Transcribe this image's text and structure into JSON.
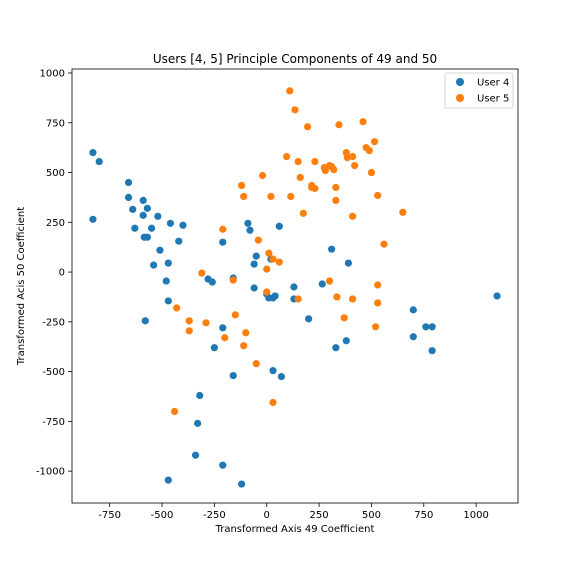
{
  "chart_data": {
    "type": "scatter",
    "title": "Users [4, 5] Principle Components of 49 and 50",
    "xlabel": "Transformed Axis 49 Coefficient",
    "ylabel": "Transformed Acis 50 Coefficient",
    "xlim": [
      -930,
      1200
    ],
    "ylim": [
      -1160,
      1020
    ],
    "xticks": [
      -750,
      -500,
      -250,
      0,
      250,
      500,
      750,
      1000
    ],
    "yticks": [
      -1000,
      -750,
      -500,
      -250,
      0,
      250,
      500,
      750,
      1000
    ],
    "grid": false,
    "legend_position": "top-right",
    "series": [
      {
        "name": "User 4",
        "color": "#1f77b4",
        "points": [
          [
            -830,
            600
          ],
          [
            -800,
            555
          ],
          [
            -830,
            265
          ],
          [
            -660,
            450
          ],
          [
            -660,
            375
          ],
          [
            -640,
            315
          ],
          [
            -630,
            220
          ],
          [
            -590,
            360
          ],
          [
            -570,
            320
          ],
          [
            -590,
            285
          ],
          [
            -585,
            175
          ],
          [
            -570,
            175
          ],
          [
            -550,
            220
          ],
          [
            -520,
            280
          ],
          [
            -460,
            245
          ],
          [
            -400,
            235
          ],
          [
            -420,
            155
          ],
          [
            -510,
            110
          ],
          [
            -540,
            35
          ],
          [
            -470,
            45
          ],
          [
            -480,
            -45
          ],
          [
            -470,
            -145
          ],
          [
            -580,
            -245
          ],
          [
            -280,
            -35
          ],
          [
            -260,
            -50
          ],
          [
            -210,
            150
          ],
          [
            -210,
            -280
          ],
          [
            -250,
            -380
          ],
          [
            -160,
            -30
          ],
          [
            -160,
            -520
          ],
          [
            -320,
            -620
          ],
          [
            -330,
            -760
          ],
          [
            -340,
            -920
          ],
          [
            -470,
            -1045
          ],
          [
            -210,
            -970
          ],
          [
            -120,
            -1065
          ],
          [
            -90,
            245
          ],
          [
            -80,
            210
          ],
          [
            -50,
            80
          ],
          [
            -60,
            40
          ],
          [
            -60,
            -80
          ],
          [
            0,
            -110
          ],
          [
            10,
            -130
          ],
          [
            30,
            -130
          ],
          [
            40,
            -120
          ],
          [
            20,
            65
          ],
          [
            60,
            230
          ],
          [
            130,
            -75
          ],
          [
            130,
            -135
          ],
          [
            30,
            -495
          ],
          [
            70,
            -525
          ],
          [
            200,
            -235
          ],
          [
            265,
            -60
          ],
          [
            310,
            115
          ],
          [
            390,
            45
          ],
          [
            330,
            -380
          ],
          [
            380,
            -345
          ],
          [
            700,
            -190
          ],
          [
            700,
            -325
          ],
          [
            760,
            -275
          ],
          [
            790,
            -275
          ],
          [
            790,
            -395
          ],
          [
            1100,
            -120
          ]
        ]
      },
      {
        "name": "User 5",
        "color": "#ff7f0e",
        "points": [
          [
            110,
            910
          ],
          [
            135,
            815
          ],
          [
            195,
            730
          ],
          [
            95,
            580
          ],
          [
            150,
            555
          ],
          [
            160,
            475
          ],
          [
            115,
            380
          ],
          [
            175,
            295
          ],
          [
            215,
            425
          ],
          [
            215,
            435
          ],
          [
            230,
            420
          ],
          [
            230,
            555
          ],
          [
            275,
            525
          ],
          [
            280,
            510
          ],
          [
            300,
            535
          ],
          [
            310,
            530
          ],
          [
            320,
            515
          ],
          [
            330,
            425
          ],
          [
            330,
            360
          ],
          [
            345,
            740
          ],
          [
            380,
            600
          ],
          [
            385,
            575
          ],
          [
            410,
            580
          ],
          [
            410,
            280
          ],
          [
            420,
            535
          ],
          [
            460,
            755
          ],
          [
            475,
            625
          ],
          [
            490,
            610
          ],
          [
            500,
            500
          ],
          [
            515,
            655
          ],
          [
            530,
            385
          ],
          [
            560,
            140
          ],
          [
            650,
            300
          ],
          [
            530,
            -65
          ],
          [
            530,
            -155
          ],
          [
            520,
            -275
          ],
          [
            410,
            -135
          ],
          [
            370,
            -230
          ],
          [
            335,
            -125
          ],
          [
            300,
            -45
          ],
          [
            150,
            -135
          ],
          [
            -120,
            435
          ],
          [
            -110,
            380
          ],
          [
            -40,
            160
          ],
          [
            -20,
            485
          ],
          [
            20,
            380
          ],
          [
            0,
            15
          ],
          [
            10,
            95
          ],
          [
            30,
            65
          ],
          [
            60,
            50
          ],
          [
            0,
            -100
          ],
          [
            -310,
            -5
          ],
          [
            -370,
            -245
          ],
          [
            -370,
            -295
          ],
          [
            -430,
            -180
          ],
          [
            -290,
            -255
          ],
          [
            -210,
            215
          ],
          [
            -200,
            -330
          ],
          [
            -160,
            -40
          ],
          [
            -150,
            -215
          ],
          [
            -100,
            -305
          ],
          [
            -110,
            -370
          ],
          [
            -50,
            -460
          ],
          [
            -440,
            -700
          ],
          [
            30,
            -655
          ]
        ]
      }
    ]
  }
}
